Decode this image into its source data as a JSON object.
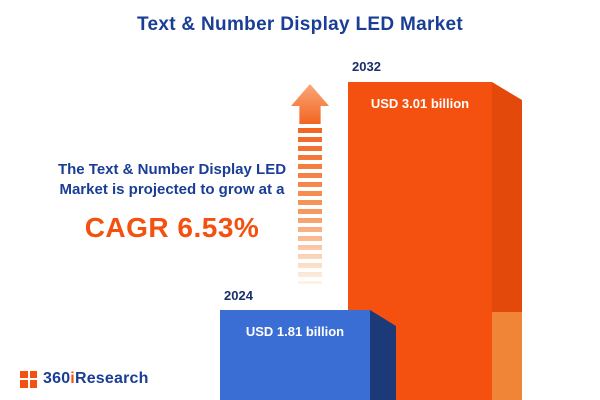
{
  "title": "Text & Number Display LED Market",
  "annotation": {
    "line1": "The Text & Number Display LED",
    "line2": "Market is projected to grow at a",
    "cagr": "CAGR 6.53%"
  },
  "logo": {
    "part1": "360",
    "part2": "i",
    "part3": "Research"
  },
  "chart_data": {
    "type": "bar",
    "categories": [
      "2024",
      "2032"
    ],
    "values": [
      1.81,
      3.01
    ],
    "unit": "USD billion",
    "bar_labels": [
      "USD 1.81 billion",
      "USD 3.01 billion"
    ],
    "title": "Text & Number Display LED Market",
    "annotations": [
      "CAGR 6.53%"
    ],
    "legend": "none",
    "grid": false,
    "colors": {
      "bar_2024": "#3a6ed4",
      "bar_2024_side": "#1d3a78",
      "bar_2032": "#f4500f",
      "bar_2032_side": "#e2490b",
      "bar_2032_side_lower": "#f08437",
      "title_navy": "#1a3e96",
      "accent_orange": "#f4500f"
    }
  }
}
